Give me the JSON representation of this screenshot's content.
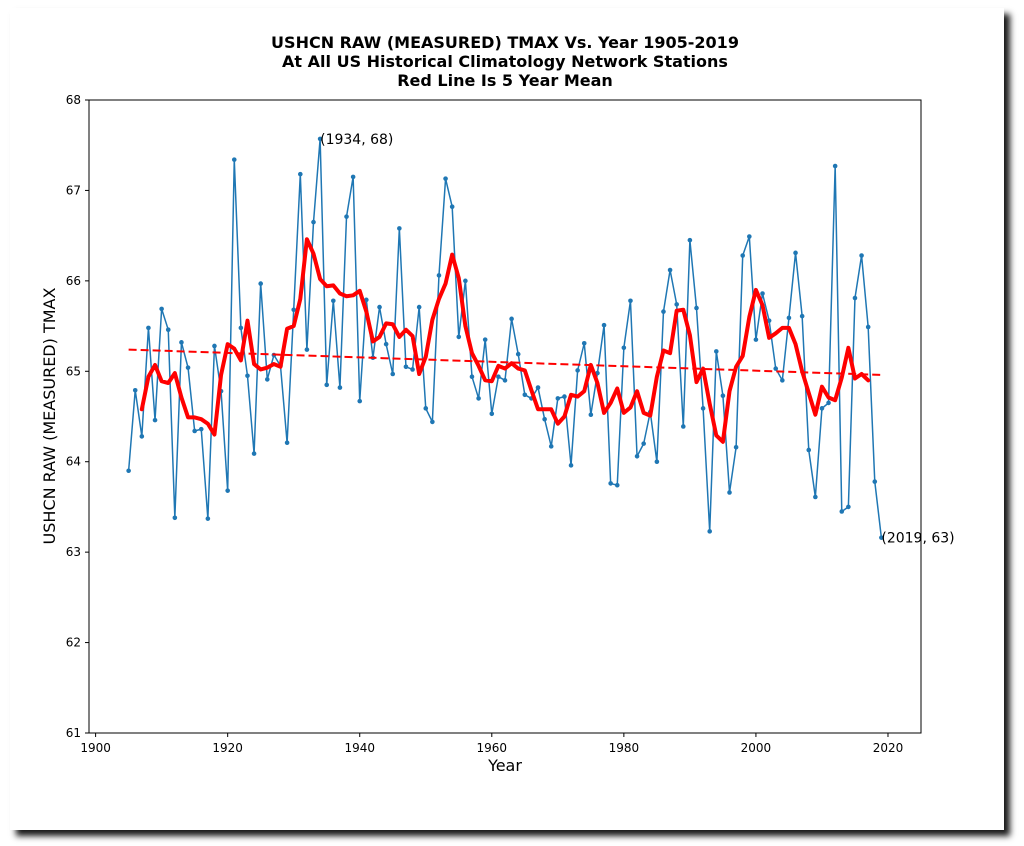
{
  "chart_data": {
    "type": "line",
    "title_lines": [
      "USHCN RAW (MEASURED) TMAX Vs. Year 1905-2019",
      "At All US Historical Climatology Network Stations",
      "Red Line Is 5 Year Mean"
    ],
    "xlabel": "Year",
    "ylabel": "USHCN RAW (MEASURED) TMAX",
    "xlim": [
      1899,
      2025
    ],
    "ylim": [
      61,
      68
    ],
    "xticks": [
      1900,
      1920,
      1940,
      1960,
      1980,
      2000,
      2020
    ],
    "yticks": [
      61,
      62,
      63,
      64,
      65,
      66,
      67,
      68
    ],
    "grid": false,
    "series": [
      {
        "kind": "annual",
        "color": "#1f77b4",
        "x": [
          1905,
          1906,
          1907,
          1908,
          1909,
          1910,
          1911,
          1912,
          1913,
          1914,
          1915,
          1916,
          1917,
          1918,
          1919,
          1920,
          1921,
          1922,
          1923,
          1924,
          1925,
          1926,
          1927,
          1928,
          1929,
          1930,
          1931,
          1932,
          1933,
          1934,
          1935,
          1936,
          1937,
          1938,
          1939,
          1940,
          1941,
          1942,
          1943,
          1944,
          1945,
          1946,
          1947,
          1948,
          1949,
          1950,
          1951,
          1952,
          1953,
          1954,
          1955,
          1956,
          1957,
          1958,
          1959,
          1960,
          1961,
          1962,
          1963,
          1964,
          1965,
          1966,
          1967,
          1968,
          1969,
          1970,
          1971,
          1972,
          1973,
          1974,
          1975,
          1976,
          1977,
          1978,
          1979,
          1980,
          1981,
          1982,
          1983,
          1984,
          1985,
          1986,
          1987,
          1988,
          1989,
          1990,
          1991,
          1992,
          1993,
          1994,
          1995,
          1996,
          1997,
          1998,
          1999,
          2000,
          2001,
          2002,
          2003,
          2004,
          2005,
          2006,
          2007,
          2008,
          2009,
          2010,
          2011,
          2012,
          2013,
          2014,
          2015,
          2016,
          2017,
          2018,
          2019
        ],
        "values": [
          63.9,
          64.79,
          64.28,
          65.48,
          64.46,
          65.69,
          65.46,
          63.38,
          65.32,
          65.04,
          64.34,
          64.36,
          63.37,
          65.28,
          64.78,
          63.68,
          67.34,
          65.48,
          64.95,
          64.09,
          65.97,
          64.91,
          65.18,
          65.06,
          64.21,
          65.68,
          67.18,
          65.24,
          66.65,
          67.57,
          64.85,
          65.78,
          64.82,
          66.71,
          67.15,
          64.67,
          65.79,
          65.15,
          65.71,
          65.3,
          64.97,
          66.58,
          65.05,
          65.02,
          65.71,
          64.59,
          64.44,
          66.06,
          67.13,
          66.82,
          65.38,
          66.0,
          64.94,
          64.7,
          65.35,
          64.53,
          64.94,
          64.9,
          65.58,
          65.19,
          64.74,
          64.7,
          64.82,
          64.47,
          64.17,
          64.7,
          64.72,
          63.96,
          65.01,
          65.31,
          64.52,
          64.98,
          65.51,
          63.76,
          63.74,
          65.26,
          65.78,
          64.06,
          64.2,
          64.55,
          64.0,
          65.66,
          66.12,
          65.74,
          64.39,
          66.45,
          65.7,
          64.59,
          63.23,
          65.22,
          64.73,
          63.66,
          64.16,
          66.28,
          66.49,
          65.35,
          65.86,
          65.56,
          65.03,
          64.9,
          65.59,
          66.31,
          65.61,
          64.13,
          63.61,
          64.59,
          64.65,
          67.27,
          63.45,
          63.5,
          65.81,
          66.28,
          65.49,
          63.78,
          63.16
        ]
      },
      {
        "kind": "five-year-mean",
        "color": "#ff0000",
        "x": [
          1907,
          1908,
          1909,
          1910,
          1911,
          1912,
          1913,
          1914,
          1915,
          1916,
          1917,
          1918,
          1919,
          1920,
          1921,
          1922,
          1923,
          1924,
          1925,
          1926,
          1927,
          1928,
          1929,
          1930,
          1931,
          1932,
          1933,
          1934,
          1935,
          1936,
          1937,
          1938,
          1939,
          1940,
          1941,
          1942,
          1943,
          1944,
          1945,
          1946,
          1947,
          1948,
          1949,
          1950,
          1951,
          1952,
          1953,
          1954,
          1955,
          1956,
          1957,
          1958,
          1959,
          1960,
          1961,
          1962,
          1963,
          1964,
          1965,
          1966,
          1967,
          1968,
          1969,
          1970,
          1971,
          1972,
          1973,
          1974,
          1975,
          1976,
          1977,
          1978,
          1979,
          1980,
          1981,
          1982,
          1983,
          1984,
          1985,
          1986,
          1987,
          1988,
          1989,
          1990,
          1991,
          1992,
          1993,
          1994,
          1995,
          1996,
          1997,
          1998,
          1999,
          2000,
          2001,
          2002,
          2003,
          2004,
          2005,
          2006,
          2007,
          2008,
          2009,
          2010,
          2011,
          2012,
          2013,
          2014,
          2015,
          2016,
          2017
        ],
        "values": [
          64.58,
          64.94,
          65.07,
          64.89,
          64.87,
          64.98,
          64.71,
          64.49,
          64.49,
          64.47,
          64.42,
          64.3,
          64.96,
          65.3,
          65.25,
          65.12,
          65.56,
          65.08,
          65.02,
          65.04,
          65.08,
          65.05,
          65.47,
          65.5,
          65.8,
          66.46,
          66.3,
          66.02,
          65.94,
          65.95,
          65.86,
          65.83,
          65.84,
          65.89,
          65.66,
          65.33,
          65.38,
          65.53,
          65.52,
          65.38,
          65.46,
          65.39,
          64.97,
          65.16,
          65.57,
          65.8,
          65.97,
          66.29,
          66.03,
          65.5,
          65.2,
          65.06,
          64.9,
          64.89,
          65.06,
          65.03,
          65.09,
          65.03,
          65.01,
          64.79,
          64.58,
          64.58,
          64.58,
          64.42,
          64.5,
          64.74,
          64.72,
          64.78,
          65.07,
          64.87,
          64.54,
          64.65,
          64.81,
          64.54,
          64.6,
          64.78,
          64.54,
          64.51,
          64.94,
          65.23,
          65.2,
          65.67,
          65.68,
          65.4,
          64.88,
          65.03,
          64.64,
          64.29,
          64.22,
          64.78,
          65.05,
          65.17,
          65.6,
          65.9,
          65.73,
          65.37,
          65.42,
          65.48,
          65.48,
          65.3,
          65.0,
          64.76,
          64.52,
          64.83,
          64.71,
          64.68,
          64.93,
          65.26,
          64.92,
          64.97,
          64.9
        ]
      },
      {
        "kind": "trend",
        "color": "#ff0000",
        "dashed": true,
        "x": [
          1905,
          2019
        ],
        "values": [
          65.24,
          64.96
        ]
      }
    ],
    "annotations": [
      {
        "text": "(1934, 68)",
        "x": 1934,
        "y": 67.57
      },
      {
        "text": "(2019, 63)",
        "x": 2019,
        "y": 63.16
      }
    ]
  }
}
